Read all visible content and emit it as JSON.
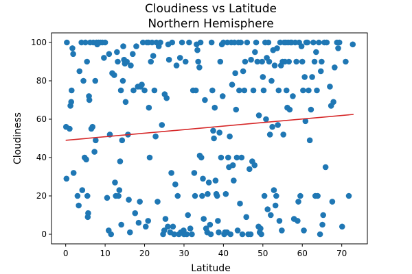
{
  "chart_data": {
    "type": "scatter",
    "title": "Cloudiness vs Latitude",
    "subtitle": "Northern Hemisphere",
    "xlabel": "Latitude",
    "ylabel": "Cloudiness",
    "xlim": [
      -3.6,
      76.5
    ],
    "ylim": [
      -5,
      105
    ],
    "x_ticks": [
      0,
      10,
      20,
      30,
      40,
      50,
      60,
      70
    ],
    "y_ticks": [
      0,
      20,
      40,
      60,
      80,
      100
    ],
    "x_tick_labels": [
      "0",
      "10",
      "20",
      "30",
      "40",
      "50",
      "60",
      "70"
    ],
    "y_tick_labels": [
      "0",
      "20",
      "40",
      "60",
      "80",
      "100"
    ],
    "grid": false,
    "point_color": "#1f77b4",
    "regression_line": {
      "color": "#d62728",
      "x": [
        0,
        73
      ],
      "y": [
        49,
        62.5
      ]
    },
    "points": [
      [
        0.1,
        56
      ],
      [
        0.2,
        29
      ],
      [
        0.3,
        100
      ],
      [
        1.0,
        55
      ],
      [
        1.2,
        67
      ],
      [
        1.4,
        69
      ],
      [
        1.5,
        75
      ],
      [
        1.7,
        97
      ],
      [
        1.9,
        94
      ],
      [
        2.0,
        32
      ],
      [
        3.0,
        20
      ],
      [
        3.3,
        15
      ],
      [
        3.5,
        85
      ],
      [
        4.0,
        100
      ],
      [
        4.2,
        23
      ],
      [
        4.5,
        80
      ],
      [
        4.8,
        40
      ],
      [
        5.0,
        100
      ],
      [
        5.2,
        39
      ],
      [
        5.4,
        90
      ],
      [
        5.5,
        20
      ],
      [
        5.6,
        9
      ],
      [
        5.7,
        11
      ],
      [
        5.9,
        72
      ],
      [
        6.0,
        70
      ],
      [
        6.2,
        100
      ],
      [
        6.5,
        55
      ],
      [
        6.8,
        56
      ],
      [
        7.0,
        100
      ],
      [
        7.3,
        43
      ],
      [
        7.5,
        80
      ],
      [
        7.6,
        49
      ],
      [
        7.8,
        100
      ],
      [
        8.0,
        99
      ],
      [
        8.3,
        100
      ],
      [
        8.8,
        100
      ],
      [
        9.3,
        100
      ],
      [
        9.7,
        92
      ],
      [
        10.0,
        100
      ],
      [
        10.5,
        19
      ],
      [
        10.9,
        2
      ],
      [
        11.0,
        94
      ],
      [
        11.2,
        52
      ],
      [
        11.5,
        0
      ],
      [
        11.8,
        84
      ],
      [
        12.3,
        83
      ],
      [
        12.5,
        27
      ],
      [
        12.7,
        20
      ],
      [
        13.0,
        95
      ],
      [
        13.2,
        90
      ],
      [
        13.4,
        20
      ],
      [
        13.6,
        23
      ],
      [
        13.8,
        38
      ],
      [
        14.0,
        75
      ],
      [
        14.1,
        5
      ],
      [
        14.3,
        49
      ],
      [
        14.5,
        80
      ],
      [
        14.6,
        98
      ],
      [
        14.8,
        91
      ],
      [
        15.0,
        89
      ],
      [
        15.2,
        69
      ],
      [
        15.5,
        90
      ],
      [
        15.8,
        52
      ],
      [
        16.0,
        18
      ],
      [
        16.3,
        1
      ],
      [
        16.5,
        88
      ],
      [
        17.0,
        94
      ],
      [
        17.2,
        75
      ],
      [
        17.6,
        11
      ],
      [
        17.9,
        98
      ],
      [
        18.3,
        77
      ],
      [
        18.5,
        6
      ],
      [
        18.8,
        17
      ],
      [
        19.0,
        77
      ],
      [
        19.3,
        78
      ],
      [
        19.6,
        100
      ],
      [
        20.0,
        75
      ],
      [
        20.3,
        4
      ],
      [
        20.6,
        100
      ],
      [
        20.9,
        7
      ],
      [
        21.0,
        100
      ],
      [
        21.1,
        66
      ],
      [
        21.3,
        40
      ],
      [
        21.6,
        90
      ],
      [
        21.9,
        100
      ],
      [
        22.2,
        93
      ],
      [
        22.5,
        75
      ],
      [
        22.8,
        51
      ],
      [
        23.0,
        100
      ],
      [
        23.3,
        17
      ],
      [
        23.6,
        98
      ],
      [
        24.0,
        100
      ],
      [
        24.4,
        57
      ],
      [
        24.7,
        0
      ],
      [
        25.0,
        2
      ],
      [
        25.1,
        73
      ],
      [
        25.3,
        8
      ],
      [
        25.6,
        71
      ],
      [
        25.9,
        4
      ],
      [
        26.0,
        99
      ],
      [
        26.2,
        91
      ],
      [
        26.5,
        1
      ],
      [
        26.8,
        32
      ],
      [
        27.0,
        100
      ],
      [
        27.2,
        4
      ],
      [
        27.5,
        0
      ],
      [
        27.8,
        26
      ],
      [
        28.1,
        88
      ],
      [
        28.4,
        20
      ],
      [
        28.7,
        0
      ],
      [
        29.0,
        92
      ],
      [
        29.2,
        1
      ],
      [
        29.5,
        100
      ],
      [
        29.9,
        2
      ],
      [
        30.0,
        0
      ],
      [
        30.4,
        90
      ],
      [
        30.7,
        0
      ],
      [
        31.0,
        10
      ],
      [
        31.3,
        100
      ],
      [
        31.6,
        3
      ],
      [
        32.0,
        0
      ],
      [
        32.3,
        75
      ],
      [
        32.6,
        32
      ],
      [
        32.8,
        20
      ],
      [
        33.0,
        75
      ],
      [
        33.2,
        99
      ],
      [
        33.4,
        96
      ],
      [
        33.6,
        90
      ],
      [
        33.9,
        87
      ],
      [
        34.0,
        41
      ],
      [
        34.2,
        100
      ],
      [
        34.4,
        40
      ],
      [
        34.6,
        20
      ],
      [
        34.8,
        29
      ],
      [
        35.0,
        8
      ],
      [
        35.3,
        70
      ],
      [
        35.6,
        3
      ],
      [
        35.9,
        1
      ],
      [
        36.0,
        21
      ],
      [
        36.3,
        27
      ],
      [
        36.6,
        5
      ],
      [
        36.8,
        0
      ],
      [
        37.0,
        100
      ],
      [
        37.2,
        75
      ],
      [
        37.4,
        54
      ],
      [
        37.6,
        50
      ],
      [
        37.8,
        66
      ],
      [
        38.0,
        28
      ],
      [
        38.2,
        21
      ],
      [
        38.4,
        20
      ],
      [
        38.6,
        7
      ],
      [
        38.8,
        1
      ],
      [
        39.0,
        53
      ],
      [
        39.2,
        90
      ],
      [
        39.4,
        40
      ],
      [
        39.6,
        99
      ],
      [
        39.8,
        72
      ],
      [
        40.0,
        100
      ],
      [
        40.2,
        0
      ],
      [
        40.4,
        1
      ],
      [
        40.6,
        21
      ],
      [
        40.9,
        1
      ],
      [
        41.0,
        100
      ],
      [
        41.2,
        40
      ],
      [
        41.4,
        35
      ],
      [
        41.6,
        51
      ],
      [
        41.8,
        0
      ],
      [
        42.0,
        100
      ],
      [
        42.2,
        78
      ],
      [
        42.4,
        36
      ],
      [
        42.6,
        28
      ],
      [
        42.8,
        100
      ],
      [
        43.0,
        84
      ],
      [
        43.2,
        65
      ],
      [
        43.4,
        40
      ],
      [
        43.6,
        2
      ],
      [
        43.8,
        100
      ],
      [
        44.0,
        75
      ],
      [
        44.2,
        16
      ],
      [
        44.4,
        100
      ],
      [
        44.6,
        40
      ],
      [
        44.8,
        0
      ],
      [
        45.0,
        85
      ],
      [
        45.3,
        75
      ],
      [
        45.5,
        90
      ],
      [
        45.8,
        9
      ],
      [
        46.0,
        100
      ],
      [
        46.3,
        0
      ],
      [
        46.6,
        34
      ],
      [
        46.9,
        0
      ],
      [
        47.0,
        91
      ],
      [
        47.3,
        38
      ],
      [
        47.6,
        75
      ],
      [
        47.9,
        36
      ],
      [
        48.0,
        95
      ],
      [
        48.3,
        100
      ],
      [
        48.6,
        90
      ],
      [
        48.9,
        4
      ],
      [
        49.0,
        62
      ],
      [
        49.2,
        1
      ],
      [
        49.4,
        3
      ],
      [
        49.6,
        0
      ],
      [
        49.8,
        90
      ],
      [
        50.0,
        82
      ],
      [
        50.2,
        75
      ],
      [
        50.4,
        20
      ],
      [
        50.6,
        100
      ],
      [
        50.8,
        60
      ],
      [
        51.0,
        92
      ],
      [
        51.2,
        13
      ],
      [
        51.4,
        100
      ],
      [
        51.6,
        90
      ],
      [
        51.8,
        52
      ],
      [
        52.0,
        10
      ],
      [
        52.2,
        80
      ],
      [
        52.4,
        56
      ],
      [
        52.6,
        96
      ],
      [
        52.8,
        23
      ],
      [
        53.0,
        88
      ],
      [
        53.2,
        15
      ],
      [
        53.4,
        20
      ],
      [
        53.6,
        97
      ],
      [
        53.8,
        57
      ],
      [
        54.0,
        75
      ],
      [
        54.2,
        7
      ],
      [
        54.4,
        100
      ],
      [
        54.6,
        88
      ],
      [
        54.8,
        2
      ],
      [
        55.0,
        90
      ],
      [
        55.2,
        52
      ],
      [
        55.4,
        100
      ],
      [
        55.6,
        90
      ],
      [
        55.8,
        100
      ],
      [
        56.0,
        75
      ],
      [
        56.2,
        66
      ],
      [
        56.4,
        100
      ],
      [
        56.6,
        90
      ],
      [
        56.8,
        65
      ],
      [
        57.0,
        100
      ],
      [
        57.3,
        100
      ],
      [
        57.6,
        72
      ],
      [
        57.9,
        8
      ],
      [
        58.2,
        100
      ],
      [
        58.5,
        90
      ],
      [
        58.8,
        7
      ],
      [
        59.0,
        17
      ],
      [
        59.2,
        100
      ],
      [
        59.5,
        20
      ],
      [
        59.8,
        98
      ],
      [
        60.0,
        90
      ],
      [
        60.2,
        75
      ],
      [
        60.4,
        2
      ],
      [
        60.6,
        82
      ],
      [
        60.8,
        59
      ],
      [
        61.0,
        100
      ],
      [
        61.3,
        100
      ],
      [
        61.6,
        75
      ],
      [
        61.9,
        49
      ],
      [
        62.2,
        65
      ],
      [
        62.5,
        82
      ],
      [
        62.8,
        100
      ],
      [
        63.1,
        90
      ],
      [
        63.3,
        20
      ],
      [
        63.5,
        95
      ],
      [
        63.7,
        75
      ],
      [
        63.9,
        20
      ],
      [
        64.2,
        100
      ],
      [
        64.5,
        0
      ],
      [
        64.7,
        85
      ],
      [
        64.9,
        90
      ],
      [
        65.1,
        5
      ],
      [
        65.3,
        10
      ],
      [
        65.6,
        100
      ],
      [
        65.9,
        35
      ],
      [
        66.2,
        100
      ],
      [
        67.0,
        77
      ],
      [
        67.3,
        67
      ],
      [
        67.6,
        17
      ],
      [
        67.9,
        69
      ],
      [
        68.2,
        87
      ],
      [
        68.8,
        100
      ],
      [
        69.1,
        97
      ],
      [
        69.4,
        100
      ],
      [
        70.1,
        4
      ],
      [
        71.0,
        90
      ],
      [
        71.8,
        20
      ],
      [
        72.8,
        99
      ]
    ]
  }
}
